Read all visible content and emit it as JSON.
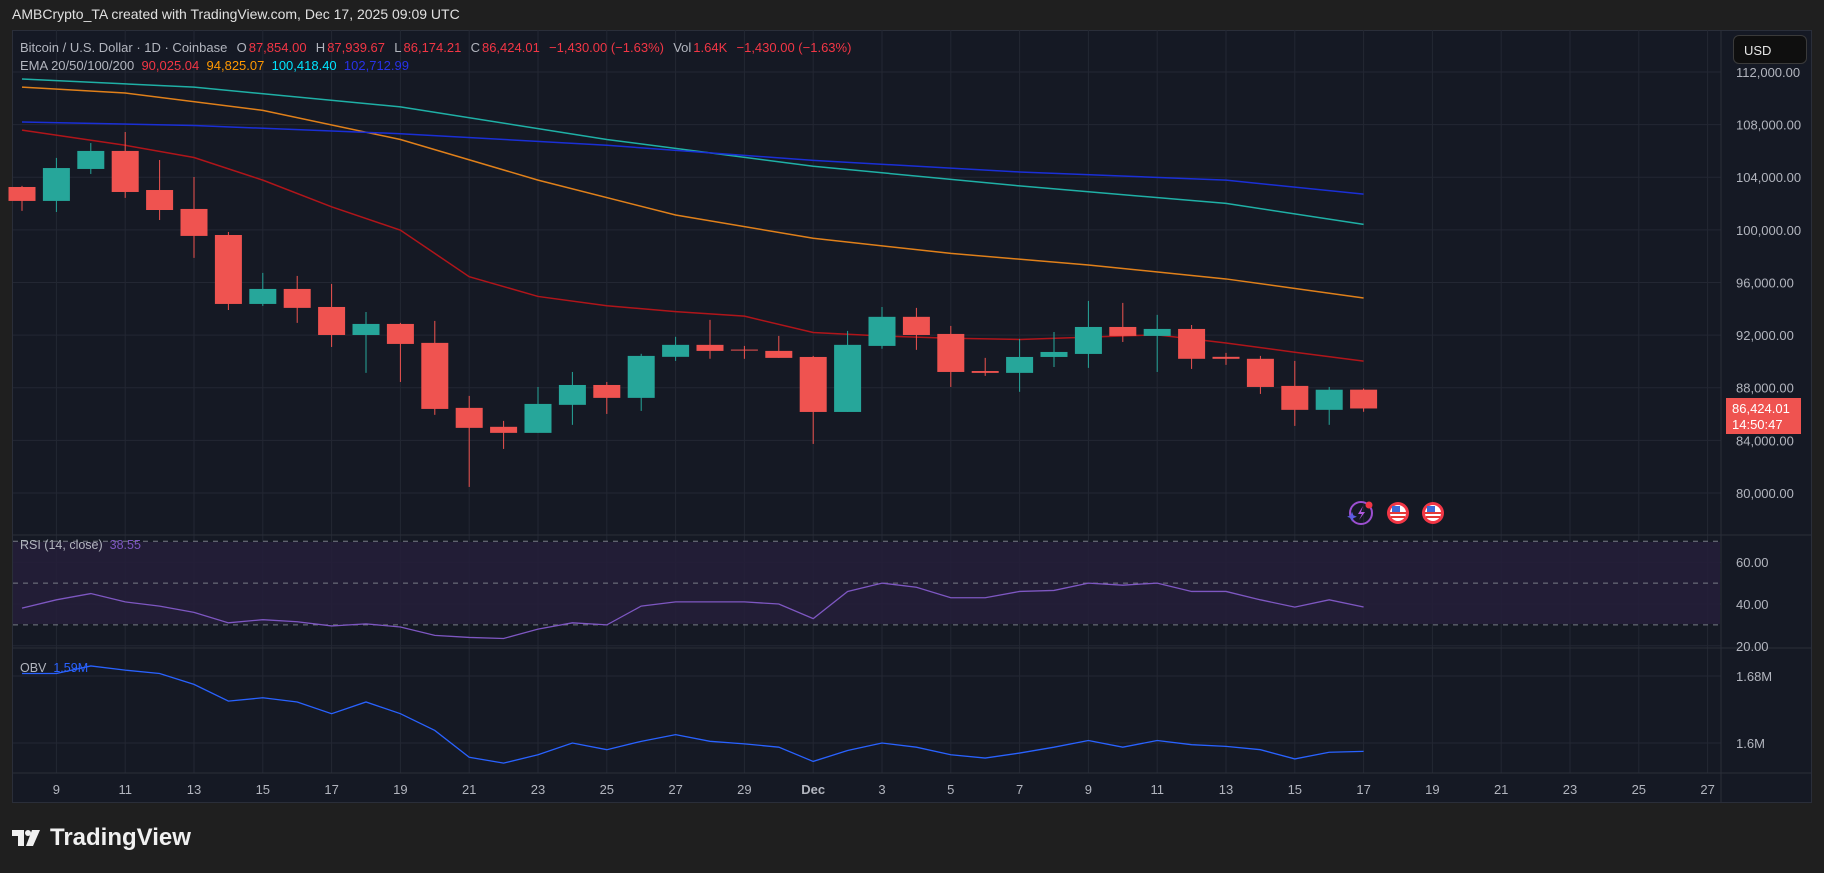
{
  "credit": "AMBCrypto_TA created with TradingView.com, Dec 17, 2025 09:09 UTC",
  "legend": {
    "symbol": "Bitcoin / U.S. Dollar · 1D · Coinbase",
    "o_label": "O",
    "o": "87,854.00",
    "h_label": "H",
    "h": "87,939.67",
    "l_label": "L",
    "l": "86,174.21",
    "c_label": "C",
    "c": "86,424.01",
    "change": "−1,430.00 (−1.63%)",
    "vol_label": "Vol",
    "vol": "1.64K",
    "vol_change": "−1,430.00 (−1.63%)",
    "ema_label": "EMA 20/50/100/200",
    "ema20": "90,025.04",
    "ema50": "94,825.07",
    "ema100": "100,418.40",
    "ema200": "102,712.99"
  },
  "currency_button": "USD",
  "last_price": {
    "price": "86,424.01",
    "countdown": "14:50:47"
  },
  "rsi_label": {
    "name": "RSI (14, close)",
    "value": "38.55"
  },
  "obv_label": {
    "name": "OBV",
    "value": "1.59M"
  },
  "logo": "TradingView",
  "icons": [
    "lightning-alert-icon",
    "us-flag-event-icon",
    "us-flag-event-icon"
  ],
  "colors": {
    "up": "#26a69a",
    "down": "#ef5350",
    "ema20": "#b0151a",
    "ema50": "#e0801a",
    "ema100": "#1fb0a6",
    "ema200": "#1a2fd6",
    "rsi": "#7e57c2",
    "obv": "#2962ff"
  },
  "chart_data": [
    {
      "type": "candlestick",
      "title": "Bitcoin / U.S. Dollar · 1D · Coinbase",
      "ylim": [
        78000,
        114000
      ],
      "y_ticks": [
        "112,000.00",
        "108,000.00",
        "104,000.00",
        "100,000.00",
        "96,000.00",
        "92,000.00",
        "88,000.00",
        "84,000.00",
        "80,000.00"
      ],
      "x_ticks": [
        "9",
        "11",
        "13",
        "15",
        "17",
        "19",
        "21",
        "23",
        "25",
        "27",
        "29",
        "Dec",
        "3",
        "5",
        "7",
        "9",
        "11",
        "13",
        "15",
        "17",
        "19",
        "21",
        "23",
        "25",
        "27"
      ],
      "grid": true,
      "dates": [
        "Nov 8",
        "Nov 9",
        "Nov 10",
        "Nov 11",
        "Nov 12",
        "Nov 13",
        "Nov 14",
        "Nov 15",
        "Nov 16",
        "Nov 17",
        "Nov 18",
        "Nov 19",
        "Nov 20",
        "Nov 21",
        "Nov 22",
        "Nov 23",
        "Nov 24",
        "Nov 25",
        "Nov 26",
        "Nov 27",
        "Nov 28",
        "Nov 29",
        "Nov 30",
        "Dec 1",
        "Dec 2",
        "Dec 3",
        "Dec 4",
        "Dec 5",
        "Dec 6",
        "Dec 7",
        "Dec 8",
        "Dec 9",
        "Dec 10",
        "Dec 11",
        "Dec 12",
        "Dec 13",
        "Dec 14",
        "Dec 15",
        "Dec 16",
        "Dec 17"
      ],
      "ohlc": [
        [
          103260,
          103340,
          101440,
          102200
        ],
        [
          102200,
          105470,
          101360,
          104700
        ],
        [
          104630,
          106600,
          104250,
          106000
        ],
        [
          106000,
          107440,
          102430,
          102880
        ],
        [
          103030,
          105310,
          100750,
          101510
        ],
        [
          101590,
          104020,
          97870,
          99540
        ],
        [
          99610,
          99840,
          93910,
          94370
        ],
        [
          94370,
          96730,
          94220,
          95510
        ],
        [
          95510,
          96500,
          92930,
          94070
        ],
        [
          94140,
          95890,
          91100,
          92010
        ],
        [
          92010,
          93760,
          89130,
          92850
        ],
        [
          92850,
          92930,
          88440,
          91330
        ],
        [
          91410,
          93080,
          85940,
          86390
        ],
        [
          86470,
          87380,
          80460,
          84950
        ],
        [
          85030,
          85480,
          83350,
          84570
        ],
        [
          84570,
          88060,
          84570,
          86770
        ],
        [
          86700,
          89200,
          85180,
          88210
        ],
        [
          88210,
          88440,
          86010,
          87230
        ],
        [
          87230,
          90580,
          86240,
          90420
        ],
        [
          90350,
          91870,
          90040,
          91260
        ],
        [
          91260,
          93160,
          90200,
          90800
        ],
        [
          90900,
          91180,
          90200,
          90850
        ],
        [
          90800,
          91940,
          90270,
          90270
        ],
        [
          90340,
          90420,
          83730,
          86160
        ],
        [
          86160,
          92320,
          86160,
          91260
        ],
        [
          91180,
          94140,
          90960,
          93390
        ],
        [
          93390,
          94070,
          90880,
          92010
        ],
        [
          92090,
          92700,
          88060,
          89200
        ],
        [
          89270,
          90270,
          88900,
          89130
        ],
        [
          89130,
          91710,
          87690,
          90340
        ],
        [
          90340,
          92240,
          89580,
          90720
        ],
        [
          90570,
          94600,
          89510,
          92620
        ],
        [
          92620,
          94450,
          91480,
          91940
        ],
        [
          91940,
          93540,
          89200,
          92470
        ],
        [
          92470,
          92770,
          89430,
          90200
        ],
        [
          90350,
          90650,
          89740,
          90200
        ],
        [
          90200,
          90420,
          87530,
          88060
        ],
        [
          88140,
          90040,
          85100,
          86320
        ],
        [
          86320,
          88060,
          85180,
          87850
        ],
        [
          87854,
          87939.67,
          86174.21,
          86424.01
        ]
      ],
      "ema_series": [
        {
          "name": "EMA 20",
          "dates": [
            "Nov 8",
            "Nov 11",
            "Nov 13",
            "Nov 15",
            "Nov 17",
            "Nov 19",
            "Nov 21",
            "Nov 23",
            "Nov 25",
            "Nov 27",
            "Nov 29",
            "Dec 1",
            "Dec 3",
            "Dec 5",
            "Dec 7",
            "Dec 9",
            "Dec 11",
            "Dec 13",
            "Dec 15",
            "Dec 17"
          ],
          "values": [
            107580,
            106430,
            105500,
            103780,
            101750,
            99980,
            96440,
            94940,
            94230,
            93790,
            93440,
            92200,
            91930,
            91760,
            91670,
            91850,
            92020,
            91400,
            90700,
            90025
          ]
        },
        {
          "name": "EMA 50",
          "dates": [
            "Nov 8",
            "Nov 11",
            "Nov 15",
            "Nov 19",
            "Nov 23",
            "Nov 27",
            "Dec 1",
            "Dec 5",
            "Dec 9",
            "Dec 13",
            "Dec 17"
          ],
          "values": [
            110850,
            110400,
            109080,
            106870,
            103780,
            101130,
            99360,
            98210,
            97330,
            96270,
            94825
          ]
        },
        {
          "name": "EMA 100",
          "dates": [
            "Nov 8",
            "Nov 13",
            "Nov 19",
            "Nov 25",
            "Dec 1",
            "Dec 7",
            "Dec 13",
            "Dec 17"
          ],
          "values": [
            111470,
            110850,
            109350,
            106870,
            104840,
            103340,
            102010,
            100418
          ]
        },
        {
          "name": "EMA 200",
          "dates": [
            "Nov 8",
            "Nov 13",
            "Nov 19",
            "Nov 25",
            "Dec 1",
            "Dec 7",
            "Dec 13",
            "Dec 17"
          ],
          "values": [
            108200,
            107930,
            107310,
            106430,
            105280,
            104400,
            103780,
            102713
          ]
        }
      ]
    },
    {
      "type": "line",
      "title": "RSI (14, close)",
      "ylim": [
        15,
        75
      ],
      "y_ticks": [
        "60.00",
        "40.00",
        "20.00"
      ],
      "bands": [
        30,
        50,
        70
      ],
      "values": [
        38,
        42,
        45,
        41,
        39,
        36,
        31,
        32.5,
        31.5,
        29.5,
        30.5,
        29,
        25,
        24,
        23.5,
        28,
        31,
        30,
        39,
        41,
        41,
        41,
        40,
        33,
        46,
        50,
        48,
        43,
        43,
        46,
        46.5,
        50,
        49,
        50,
        46,
        46,
        42,
        38.5,
        42,
        38.55
      ]
    },
    {
      "type": "line",
      "title": "OBV",
      "y_ticks": [
        "1.68M",
        "1.6M"
      ],
      "values_millions": [
        1.683,
        1.683,
        1.692,
        1.687,
        1.683,
        1.67,
        1.65,
        1.654,
        1.649,
        1.635,
        1.649,
        1.635,
        1.615,
        1.583,
        1.576,
        1.586,
        1.6,
        1.592,
        1.602,
        1.61,
        1.602,
        1.599,
        1.595,
        1.578,
        1.591,
        1.6,
        1.595,
        1.586,
        1.582,
        1.588,
        1.595,
        1.603,
        1.595,
        1.603,
        1.598,
        1.596,
        1.592,
        1.581,
        1.589,
        1.59
      ]
    }
  ]
}
